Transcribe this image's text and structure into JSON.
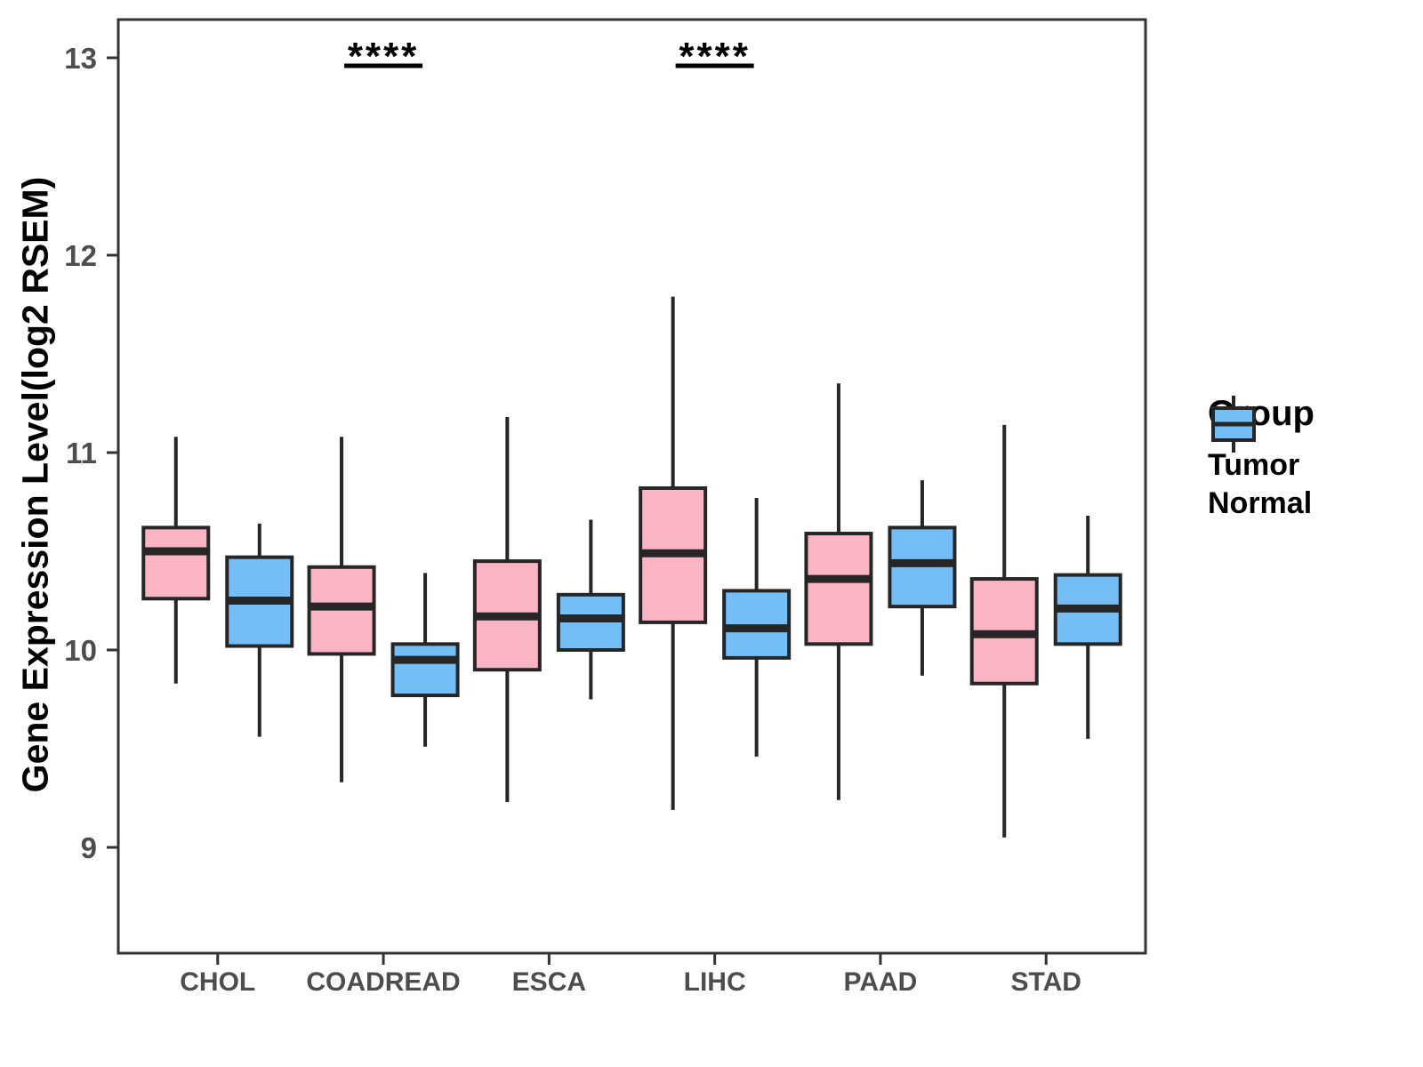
{
  "chart_data": {
    "type": "boxplot",
    "title": "",
    "ylabel": "Gene Expression Level(log2 RSEM)",
    "xlabel": "",
    "ylim": [
      8.45,
      13.2
    ],
    "yticks": [
      9,
      10,
      11,
      12,
      13
    ],
    "categories": [
      "CHOL",
      "COADREAD",
      "ESCA",
      "LIHC",
      "PAAD",
      "STAD"
    ],
    "grid": false,
    "legend": {
      "title": "Group",
      "position": "right",
      "entries": [
        {
          "label": "Tumor",
          "color": "#FBB4C4"
        },
        {
          "label": "Normal",
          "color": "#74BEF7"
        }
      ]
    },
    "series": [
      {
        "name": "Tumor",
        "color": "#FBB4C4",
        "boxes": [
          {
            "category": "CHOL",
            "min": 9.83,
            "q1": 10.26,
            "median": 10.5,
            "q3": 10.62,
            "max": 11.08
          },
          {
            "category": "COADREAD",
            "min": 9.33,
            "q1": 9.98,
            "median": 10.22,
            "q3": 10.42,
            "max": 11.08
          },
          {
            "category": "ESCA",
            "min": 9.23,
            "q1": 9.9,
            "median": 10.17,
            "q3": 10.45,
            "max": 11.18
          },
          {
            "category": "LIHC",
            "min": 9.19,
            "q1": 10.14,
            "median": 10.49,
            "q3": 10.82,
            "max": 11.79
          },
          {
            "category": "PAAD",
            "min": 9.24,
            "q1": 10.03,
            "median": 10.36,
            "q3": 10.59,
            "max": 11.35
          },
          {
            "category": "STAD",
            "min": 9.05,
            "q1": 9.83,
            "median": 10.08,
            "q3": 10.36,
            "max": 11.14
          }
        ]
      },
      {
        "name": "Normal",
        "color": "#74BEF7",
        "boxes": [
          {
            "category": "CHOL",
            "min": 9.56,
            "q1": 10.02,
            "median": 10.25,
            "q3": 10.47,
            "max": 10.64
          },
          {
            "category": "COADREAD",
            "min": 9.51,
            "q1": 9.77,
            "median": 9.95,
            "q3": 10.03,
            "max": 10.39
          },
          {
            "category": "ESCA",
            "min": 9.75,
            "q1": 10.0,
            "median": 10.16,
            "q3": 10.28,
            "max": 10.66
          },
          {
            "category": "LIHC",
            "min": 9.46,
            "q1": 9.96,
            "median": 10.11,
            "q3": 10.3,
            "max": 10.77
          },
          {
            "category": "PAAD",
            "min": 9.87,
            "q1": 10.22,
            "median": 10.44,
            "q3": 10.62,
            "max": 10.86
          },
          {
            "category": "STAD",
            "min": 9.55,
            "q1": 10.03,
            "median": 10.21,
            "q3": 10.38,
            "max": 10.68
          }
        ]
      }
    ],
    "significance": [
      {
        "category": "COADREAD",
        "label": "****"
      },
      {
        "category": "LIHC",
        "label": "****"
      }
    ],
    "colors": {
      "box_stroke": "#262626",
      "axis": "#333333",
      "tick_text": "#4D4D4D",
      "title_text": "#000000",
      "background": "#FFFFFF"
    }
  }
}
